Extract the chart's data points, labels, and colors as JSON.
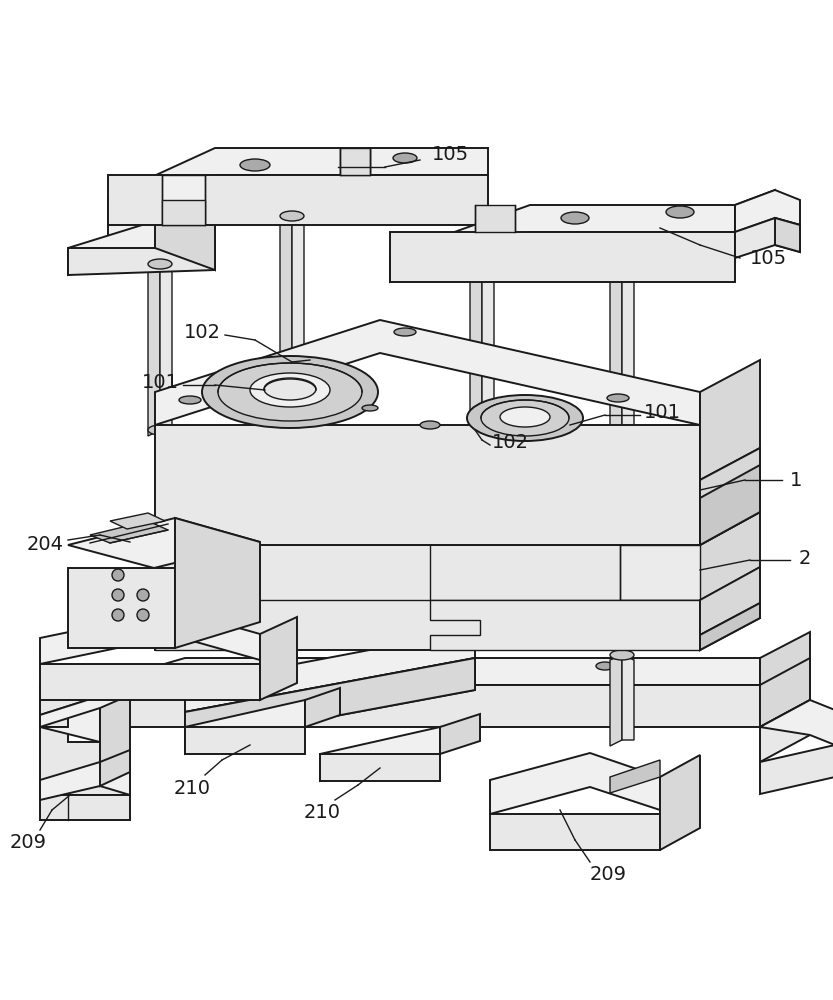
{
  "figsize": [
    8.33,
    10.0
  ],
  "dpi": 100,
  "bg": "#ffffff",
  "ec": "#1a1a1a",
  "lw_main": 1.4,
  "lw_thin": 1.0,
  "c_top": "#f0f0f0",
  "c_front": "#e8e8e8",
  "c_right": "#d8d8d8",
  "c_dark": "#c8c8c8",
  "c_hole": "#aaaaaa",
  "c_recess": "#b8b8b8"
}
